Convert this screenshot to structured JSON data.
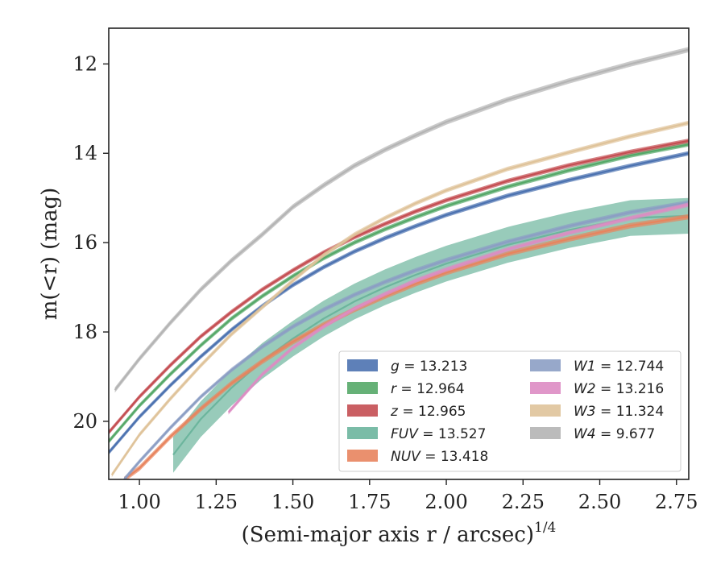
{
  "chart_data": {
    "type": "line",
    "xlabel": "(Semi-major axis r / arcsec)",
    "xlabel_superscript": "1/4",
    "ylabel": "m(<r) (mag)",
    "xlim": [
      0.9,
      2.79
    ],
    "ylim": [
      21.3,
      11.2
    ],
    "y_inverted": true,
    "xticks": [
      "1.00",
      "1.25",
      "1.50",
      "1.75",
      "2.00",
      "2.25",
      "2.50",
      "2.75"
    ],
    "yticks": [
      "12",
      "14",
      "16",
      "18",
      "20"
    ],
    "grid": false,
    "legend_position": "lower-right",
    "series": [
      {
        "name": "g",
        "value": "13.213",
        "color": "#4c72b0",
        "x": [
          0.9,
          1.0,
          1.1,
          1.2,
          1.3,
          1.4,
          1.5,
          1.6,
          1.7,
          1.8,
          1.9,
          2.0,
          2.2,
          2.4,
          2.6,
          2.79
        ],
        "y": [
          20.7,
          19.9,
          19.2,
          18.55,
          17.95,
          17.42,
          16.95,
          16.55,
          16.2,
          15.9,
          15.63,
          15.38,
          14.95,
          14.6,
          14.28,
          14.0
        ],
        "band": 0.05
      },
      {
        "name": "r",
        "value": "12.964",
        "color": "#55a868",
        "x": [
          0.9,
          1.0,
          1.1,
          1.2,
          1.3,
          1.4,
          1.5,
          1.6,
          1.7,
          1.8,
          1.9,
          2.0,
          2.2,
          2.4,
          2.6,
          2.79
        ],
        "y": [
          20.45,
          19.65,
          18.95,
          18.3,
          17.7,
          17.2,
          16.75,
          16.35,
          16.0,
          15.7,
          15.43,
          15.18,
          14.75,
          14.38,
          14.05,
          13.8
        ],
        "band": 0.05
      },
      {
        "name": "z",
        "value": "12.965",
        "color": "#c44e52",
        "x": [
          0.9,
          1.0,
          1.1,
          1.2,
          1.3,
          1.4,
          1.5,
          1.6,
          1.7,
          1.8,
          1.9,
          2.0,
          2.2,
          2.4,
          2.6,
          2.79
        ],
        "y": [
          20.25,
          19.45,
          18.75,
          18.1,
          17.55,
          17.05,
          16.62,
          16.22,
          15.88,
          15.58,
          15.3,
          15.05,
          14.62,
          14.27,
          13.97,
          13.72
        ],
        "band": 0.05
      },
      {
        "name": "FUV",
        "value": "13.527",
        "color": "#6cb59d",
        "x": [
          1.11,
          1.2,
          1.3,
          1.4,
          1.5,
          1.6,
          1.7,
          1.8,
          1.9,
          2.0,
          2.2,
          2.4,
          2.6,
          2.79
        ],
        "y": [
          20.75,
          19.95,
          19.25,
          18.65,
          18.15,
          17.7,
          17.32,
          17.0,
          16.72,
          16.47,
          16.05,
          15.72,
          15.45,
          15.4
        ],
        "band": 0.4
      },
      {
        "name": "NUV",
        "value": "13.418",
        "color": "#e8845e",
        "x": [
          0.95,
          1.0,
          1.1,
          1.2,
          1.3,
          1.4,
          1.5,
          1.6,
          1.7,
          1.8,
          1.9,
          2.0,
          2.2,
          2.4,
          2.6,
          2.79
        ],
        "y": [
          21.3,
          21.05,
          20.35,
          19.72,
          19.15,
          18.66,
          18.22,
          17.84,
          17.5,
          17.2,
          16.92,
          16.67,
          16.25,
          15.92,
          15.62,
          15.42
        ],
        "band": 0.06
      },
      {
        "name": "W1",
        "value": "12.744",
        "color": "#8c9ec4",
        "x": [
          0.95,
          1.0,
          1.1,
          1.2,
          1.3,
          1.4,
          1.5,
          1.6,
          1.7,
          1.8,
          1.9,
          2.0,
          2.2,
          2.4,
          2.6,
          2.79
        ],
        "y": [
          21.3,
          20.9,
          20.15,
          19.45,
          18.85,
          18.33,
          17.88,
          17.5,
          17.17,
          16.88,
          16.62,
          16.39,
          15.98,
          15.63,
          15.32,
          15.1
        ],
        "band": 0.05
      },
      {
        "name": "W2",
        "value": "13.216",
        "color": "#dd8cc3",
        "x": [
          1.29,
          1.4,
          1.5,
          1.6,
          1.7,
          1.8,
          1.9,
          2.0,
          2.2,
          2.4,
          2.6,
          2.79
        ],
        "y": [
          19.8,
          18.95,
          18.35,
          17.88,
          17.48,
          17.15,
          16.85,
          16.6,
          16.15,
          15.78,
          15.45,
          15.15
        ],
        "band": 0.05
      },
      {
        "name": "W3",
        "value": "11.324",
        "color": "#dfc39a",
        "x": [
          0.91,
          1.0,
          1.1,
          1.2,
          1.3,
          1.4,
          1.5,
          1.6,
          1.7,
          1.8,
          1.9,
          2.0,
          2.2,
          2.4,
          2.6,
          2.79
        ],
        "y": [
          21.2,
          20.3,
          19.5,
          18.75,
          18.05,
          17.45,
          16.85,
          16.28,
          15.82,
          15.45,
          15.12,
          14.83,
          14.35,
          13.98,
          13.62,
          13.32
        ],
        "band": 0.05
      },
      {
        "name": "W4",
        "value": "9.677",
        "color": "#b4b4b4",
        "x": [
          0.92,
          1.0,
          1.1,
          1.2,
          1.3,
          1.4,
          1.5,
          1.6,
          1.7,
          1.8,
          1.9,
          2.0,
          2.2,
          2.4,
          2.6,
          2.79
        ],
        "y": [
          19.3,
          18.6,
          17.8,
          17.05,
          16.4,
          15.82,
          15.2,
          14.72,
          14.28,
          13.92,
          13.6,
          13.3,
          12.8,
          12.38,
          12.0,
          11.68
        ],
        "band": 0.06
      }
    ]
  }
}
